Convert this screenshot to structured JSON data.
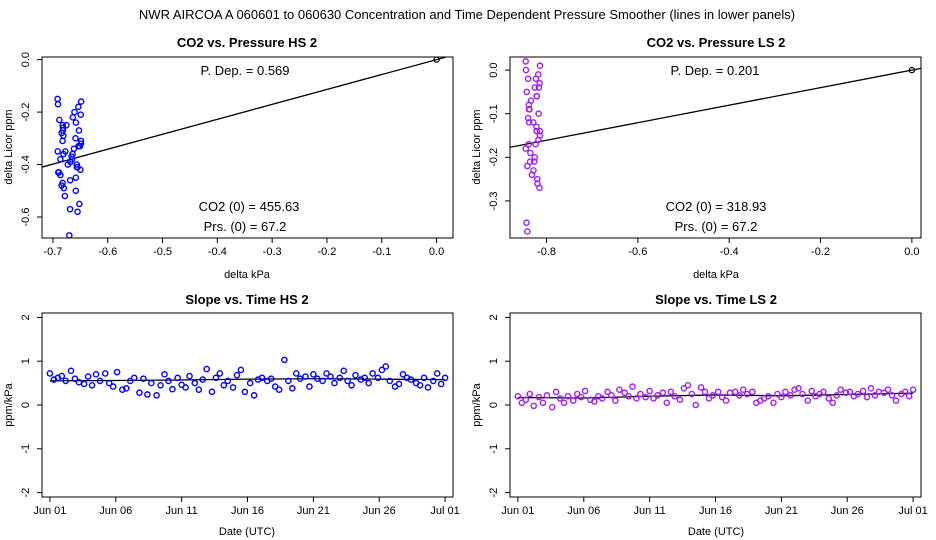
{
  "main_title": "NWR   AIRCOA A   060601 to 060630   Concentration and Time Dependent Pressure Smoother (lines in lower panels)",
  "colors": {
    "hs": "#0000ff",
    "ls": "#a020f0",
    "line": "#000000"
  },
  "chart_data": [
    {
      "id": "p1",
      "type": "scatter",
      "title": "CO2 vs. Pressure HS 2",
      "xlabel": "delta kPa",
      "ylabel": "delta Licor ppm",
      "xlim": [
        -0.72,
        0.03
      ],
      "ylim": [
        -0.68,
        0.01
      ],
      "xticks": [
        -0.7,
        -0.6,
        -0.5,
        -0.4,
        -0.3,
        -0.2,
        -0.1,
        0.0
      ],
      "xticklabels": [
        "-0.7",
        "-0.6",
        "-0.5",
        "-0.4",
        "-0.3",
        "-0.2",
        "-0.1",
        "0.0"
      ],
      "yticks": [
        0.0,
        -0.2,
        -0.4,
        -0.6
      ],
      "yticklabels": [
        "0.0",
        "-0.2",
        "-0.4",
        "-0.6"
      ],
      "annotations": {
        "pdep": "P. Dep. =  0.569",
        "co2_0": "CO2 (0) =  455.63",
        "prs_0": "Prs. (0) =  67.2"
      },
      "fit": {
        "slope": 0.569,
        "intercept": 0.0
      },
      "reference_point": [
        0.0,
        0.0
      ],
      "points": {
        "x_center": -0.67,
        "x_spread": 0.022,
        "y_values": [
          -0.15,
          -0.16,
          -0.17,
          -0.18,
          -0.2,
          -0.21,
          -0.22,
          -0.23,
          -0.24,
          -0.25,
          -0.25,
          -0.26,
          -0.27,
          -0.28,
          -0.29,
          -0.3,
          -0.31,
          -0.32,
          -0.33,
          -0.34,
          -0.35,
          -0.35,
          -0.36,
          -0.37,
          -0.38,
          -0.39,
          -0.4,
          -0.4,
          -0.41,
          -0.42,
          -0.43,
          -0.44,
          -0.45,
          -0.46,
          -0.47,
          -0.48,
          -0.49,
          -0.5,
          -0.52,
          -0.55,
          -0.57,
          -0.58,
          -0.67,
          -0.38,
          -0.33,
          -0.27,
          -0.43,
          -0.36,
          -0.41,
          -0.31
        ]
      }
    },
    {
      "id": "p2",
      "type": "scatter",
      "title": "CO2 vs. Pressure LS 2",
      "xlabel": "delta kPa",
      "ylabel": "delta Licor ppm",
      "xlim": [
        -0.88,
        0.02
      ],
      "ylim": [
        -0.385,
        0.03
      ],
      "xticks": [
        -0.8,
        -0.6,
        -0.4,
        -0.2,
        0.0
      ],
      "xticklabels": [
        "-0.8",
        "-0.6",
        "-0.4",
        "-0.2",
        "0.0"
      ],
      "yticks": [
        0.0,
        -0.1,
        -0.2,
        -0.3
      ],
      "yticklabels": [
        "0.0",
        "-0.1",
        "-0.2",
        "-0.3"
      ],
      "annotations": {
        "pdep": "P. Dep. =  0.201",
        "co2_0": "CO2 (0) =  318.93",
        "prs_0": "Prs. (0) =  67.2"
      },
      "fit": {
        "slope": 0.201,
        "intercept": 0.0
      },
      "reference_point": [
        0.0,
        0.0
      ],
      "points": {
        "x_center": -0.83,
        "x_spread": 0.016,
        "y_values": [
          0.02,
          0.01,
          0.0,
          -0.01,
          -0.02,
          -0.03,
          -0.04,
          -0.05,
          -0.06,
          -0.07,
          -0.08,
          -0.09,
          -0.1,
          -0.11,
          -0.12,
          -0.13,
          -0.14,
          -0.15,
          -0.16,
          -0.17,
          -0.18,
          -0.19,
          -0.2,
          -0.21,
          -0.22,
          -0.23,
          -0.24,
          -0.25,
          -0.26,
          -0.27,
          -0.35,
          -0.37,
          -0.06,
          -0.12,
          -0.17,
          -0.02,
          -0.09,
          -0.14,
          -0.21,
          -0.04
        ]
      }
    },
    {
      "id": "p3",
      "type": "scatter",
      "title": "Slope vs. Time HS 2",
      "xlabel": "Date (UTC)",
      "ylabel": "ppm/kPa",
      "xlim": [
        -0.6,
        30.6
      ],
      "ylim": [
        -2.1,
        2.1
      ],
      "xticks": [
        0,
        5,
        10,
        15,
        20,
        25,
        30
      ],
      "xticklabels": [
        "Jun 01",
        "Jun 06",
        "Jun 11",
        "Jun 16",
        "Jun 21",
        "Jun 26",
        "Jul 01"
      ],
      "yticks": [
        -2,
        -1,
        0,
        1,
        2
      ],
      "yticklabels": [
        "-2",
        "-1",
        "0",
        "1",
        "2"
      ],
      "smoother": {
        "x": [
          0,
          5,
          10,
          15,
          20,
          25,
          30
        ],
        "y": [
          0.55,
          0.56,
          0.57,
          0.59,
          0.6,
          0.59,
          0.58
        ]
      },
      "points": {
        "x": [
          0.0,
          0.3,
          0.6,
          0.9,
          1.2,
          1.6,
          1.9,
          2.2,
          2.6,
          2.9,
          3.2,
          3.5,
          3.8,
          4.2,
          4.5,
          4.8,
          5.1,
          5.5,
          5.8,
          6.1,
          6.4,
          6.8,
          7.1,
          7.4,
          7.7,
          8.1,
          8.4,
          8.7,
          9.0,
          9.3,
          9.7,
          10.0,
          10.3,
          10.6,
          11.0,
          11.3,
          11.6,
          11.9,
          12.3,
          12.6,
          12.9,
          13.2,
          13.5,
          13.9,
          14.2,
          14.5,
          14.8,
          15.2,
          15.5,
          15.8,
          16.1,
          16.5,
          16.8,
          17.1,
          17.4,
          17.8,
          18.1,
          18.4,
          18.7,
          19.0,
          19.4,
          19.7,
          20.0,
          20.3,
          20.7,
          21.0,
          21.3,
          21.6,
          22.0,
          22.3,
          22.6,
          22.9,
          23.2,
          23.6,
          23.9,
          24.2,
          24.5,
          24.9,
          25.2,
          25.5,
          25.8,
          26.2,
          26.5,
          26.8,
          27.1,
          27.4,
          27.8,
          28.1,
          28.4,
          28.7,
          29.1,
          29.4,
          29.7,
          30.0
        ],
        "y": [
          0.72,
          0.58,
          0.62,
          0.66,
          0.55,
          0.78,
          0.6,
          0.52,
          0.48,
          0.65,
          0.45,
          0.7,
          0.55,
          0.72,
          0.5,
          0.42,
          0.75,
          0.35,
          0.38,
          0.55,
          0.62,
          0.28,
          0.6,
          0.24,
          0.5,
          0.22,
          0.45,
          0.7,
          0.55,
          0.36,
          0.62,
          0.46,
          0.4,
          0.66,
          0.5,
          0.35,
          0.58,
          0.82,
          0.3,
          0.62,
          0.72,
          0.45,
          0.55,
          0.4,
          0.68,
          0.8,
          0.3,
          0.5,
          0.22,
          0.58,
          0.62,
          0.55,
          0.6,
          0.42,
          0.35,
          1.03,
          0.55,
          0.38,
          0.72,
          0.6,
          0.65,
          0.42,
          0.7,
          0.6,
          0.55,
          0.72,
          0.65,
          0.5,
          0.62,
          0.78,
          0.55,
          0.45,
          0.68,
          0.58,
          0.62,
          0.5,
          0.72,
          0.62,
          0.8,
          0.88,
          0.55,
          0.42,
          0.48,
          0.7,
          0.62,
          0.58,
          0.5,
          0.45,
          0.62,
          0.4,
          0.55,
          0.72,
          0.48,
          0.62
        ]
      }
    },
    {
      "id": "p4",
      "type": "scatter",
      "title": "Slope vs. Time LS 2",
      "xlabel": "Date (UTC)",
      "ylabel": "ppm/kPa",
      "xlim": [
        -0.6,
        30.6
      ],
      "ylim": [
        -2.1,
        2.1
      ],
      "xticks": [
        0,
        5,
        10,
        15,
        20,
        25,
        30
      ],
      "xticklabels": [
        "Jun 01",
        "Jun 06",
        "Jun 11",
        "Jun 16",
        "Jun 21",
        "Jun 26",
        "Jul 01"
      ],
      "yticks": [
        -2,
        -1,
        0,
        1,
        2
      ],
      "yticklabels": [
        "-2",
        "-1",
        "0",
        "1",
        "2"
      ],
      "smoother": {
        "x": [
          0,
          5,
          10,
          15,
          20,
          25,
          30
        ],
        "y": [
          0.17,
          0.16,
          0.2,
          0.23,
          0.21,
          0.24,
          0.27
        ]
      },
      "points": {
        "x": [
          0.0,
          0.3,
          0.6,
          0.9,
          1.2,
          1.6,
          1.9,
          2.2,
          2.6,
          2.9,
          3.2,
          3.5,
          3.8,
          4.2,
          4.5,
          4.8,
          5.1,
          5.5,
          5.8,
          6.1,
          6.4,
          6.8,
          7.1,
          7.4,
          7.7,
          8.1,
          8.4,
          8.7,
          9.0,
          9.3,
          9.7,
          10.0,
          10.3,
          10.6,
          11.0,
          11.3,
          11.6,
          11.9,
          12.3,
          12.6,
          12.9,
          13.2,
          13.5,
          13.9,
          14.2,
          14.5,
          14.8,
          15.2,
          15.5,
          15.8,
          16.1,
          16.5,
          16.8,
          17.1,
          17.4,
          17.8,
          18.1,
          18.4,
          18.7,
          19.0,
          19.4,
          19.7,
          20.0,
          20.3,
          20.7,
          21.0,
          21.3,
          21.6,
          22.0,
          22.3,
          22.6,
          22.9,
          23.2,
          23.6,
          23.9,
          24.2,
          24.5,
          24.9,
          25.2,
          25.5,
          25.8,
          26.2,
          26.5,
          26.8,
          27.1,
          27.4,
          27.8,
          28.1,
          28.4,
          28.7,
          29.1,
          29.4,
          29.7,
          30.0
        ],
        "y": [
          0.2,
          0.05,
          0.12,
          0.25,
          -0.02,
          0.18,
          0.05,
          0.22,
          -0.05,
          0.3,
          0.15,
          0.05,
          0.2,
          0.1,
          0.25,
          0.18,
          0.32,
          0.12,
          0.08,
          0.2,
          0.15,
          0.3,
          0.22,
          0.1,
          0.35,
          0.28,
          0.2,
          0.42,
          0.15,
          0.25,
          0.18,
          0.32,
          0.15,
          0.22,
          0.28,
          0.05,
          0.3,
          0.2,
          0.12,
          0.38,
          0.45,
          0.25,
          0.0,
          0.4,
          0.3,
          0.15,
          0.22,
          0.3,
          0.18,
          0.1,
          0.28,
          0.3,
          0.22,
          0.35,
          0.25,
          0.3,
          0.05,
          0.1,
          0.15,
          0.2,
          0.05,
          0.25,
          0.18,
          0.3,
          0.22,
          0.35,
          0.38,
          0.25,
          0.1,
          0.32,
          0.2,
          0.25,
          0.3,
          0.15,
          0.05,
          0.22,
          0.35,
          0.28,
          0.3,
          0.2,
          0.25,
          0.32,
          0.18,
          0.38,
          0.22,
          0.3,
          0.28,
          0.35,
          0.22,
          0.1,
          0.25,
          0.3,
          0.2,
          0.35
        ]
      }
    }
  ]
}
